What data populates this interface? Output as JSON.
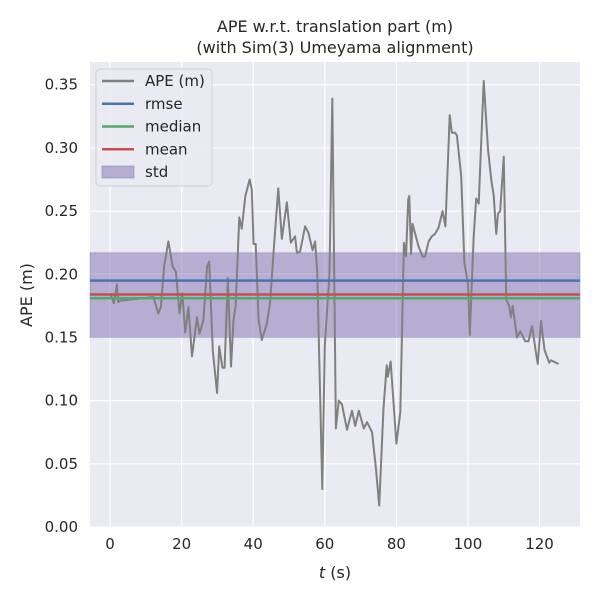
{
  "chart_data": {
    "type": "line",
    "title": [
      "APE w.r.t. translation part (m)",
      "(with Sim(3) Umeyama alignment)"
    ],
    "xlabel_var": "t",
    "xlabel_unit": " (s)",
    "ylabel": "APE (m)",
    "xlim": [
      -5.6,
      131.3
    ],
    "ylim": [
      0,
      0.368
    ],
    "xticks": [
      0,
      20,
      40,
      60,
      80,
      100,
      120
    ],
    "yticks": [
      0.0,
      0.05,
      0.1,
      0.15,
      0.2,
      0.25,
      0.3,
      0.35
    ],
    "grid": true,
    "legend_position": "top-left",
    "legend": [
      "APE (m)",
      "rmse",
      "median",
      "mean",
      "std"
    ],
    "colors": {
      "ape": "#808080",
      "rmse": "#4C72B0",
      "median": "#55A868",
      "mean": "#C44E52",
      "std": "#8172B2",
      "background": "#EAEAF2",
      "grid": "#FFFFFF"
    },
    "stats": {
      "rmse": 0.195,
      "median": 0.181,
      "mean": 0.184,
      "std_band": [
        0.15,
        0.217
      ]
    },
    "series": [
      {
        "name": "APE (m)",
        "t": [
          0,
          1.1,
          1.9,
          2.3,
          2.8,
          12.1,
          13.5,
          14.2,
          15.1,
          16.3,
          17.5,
          18.4,
          19.4,
          20.2,
          21,
          21.9,
          22.9,
          24.3,
          25,
          26.1,
          27.1,
          27.7,
          28.7,
          29.9,
          30.5,
          31.4,
          32,
          32.9,
          33.8,
          34.5,
          35.1,
          36.1,
          36.8,
          37.8,
          39,
          39.6,
          40.1,
          40.7,
          41.5,
          42.4,
          43.8,
          44.7,
          45.8,
          47,
          48,
          49.4,
          50.5,
          51.7,
          52.2,
          53.1,
          54.5,
          55.4,
          56.6,
          57.3,
          57.9,
          59.3,
          60,
          61.3,
          62.1,
          63.1,
          63.9,
          64.8,
          66.2,
          67.6,
          68.5,
          69.5,
          70.9,
          71.8,
          73.2,
          74.3,
          75.2,
          76.4,
          77.3,
          77.6,
          78.4,
          80,
          81.1,
          82.1,
          82.7,
          83.3,
          83.6,
          84.1,
          84.5,
          86.2,
          87.3,
          88,
          89,
          89.9,
          90.8,
          91.8,
          92.9,
          93.7,
          94.3,
          94.9,
          95.5,
          96.4,
          96.9,
          98.1,
          99,
          100,
          100.5,
          101.6,
          102.3,
          103,
          104.4,
          105.6,
          106.5,
          107.2,
          107.9,
          108.4,
          109,
          110,
          110.7,
          111.5,
          112,
          112.5,
          113.7,
          114.6,
          116,
          116.9,
          117.9,
          119,
          119.5,
          120.4,
          121.4,
          122.7,
          123.2,
          125.3
        ],
        "values": [
          0.185,
          0.177,
          0.192,
          0.178,
          0.179,
          0.182,
          0.169,
          0.174,
          0.206,
          0.226,
          0.206,
          0.202,
          0.169,
          0.185,
          0.154,
          0.174,
          0.135,
          0.166,
          0.153,
          0.164,
          0.206,
          0.21,
          0.14,
          0.106,
          0.143,
          0.126,
          0.126,
          0.197,
          0.127,
          0.164,
          0.175,
          0.245,
          0.236,
          0.262,
          0.275,
          0.267,
          0.224,
          0.224,
          0.164,
          0.148,
          0.161,
          0.177,
          0.222,
          0.268,
          0.228,
          0.257,
          0.225,
          0.23,
          0.217,
          0.218,
          0.238,
          0.233,
          0.219,
          0.226,
          0.201,
          0.03,
          0.144,
          0.2,
          0.339,
          0.078,
          0.1,
          0.097,
          0.077,
          0.092,
          0.08,
          0.092,
          0.078,
          0.083,
          0.075,
          0.046,
          0.017,
          0.094,
          0.128,
          0.119,
          0.131,
          0.066,
          0.091,
          0.225,
          0.214,
          0.259,
          0.262,
          0.216,
          0.24,
          0.222,
          0.214,
          0.214,
          0.226,
          0.23,
          0.232,
          0.237,
          0.25,
          0.238,
          0.282,
          0.326,
          0.312,
          0.312,
          0.31,
          0.278,
          0.209,
          0.193,
          0.152,
          0.23,
          0.26,
          0.256,
          0.353,
          0.299,
          0.275,
          0.262,
          0.232,
          0.248,
          0.25,
          0.293,
          0.18,
          0.175,
          0.166,
          0.175,
          0.15,
          0.155,
          0.147,
          0.147,
          0.159,
          0.138,
          0.129,
          0.163,
          0.14,
          0.13,
          0.132,
          0.129
        ]
      }
    ]
  }
}
